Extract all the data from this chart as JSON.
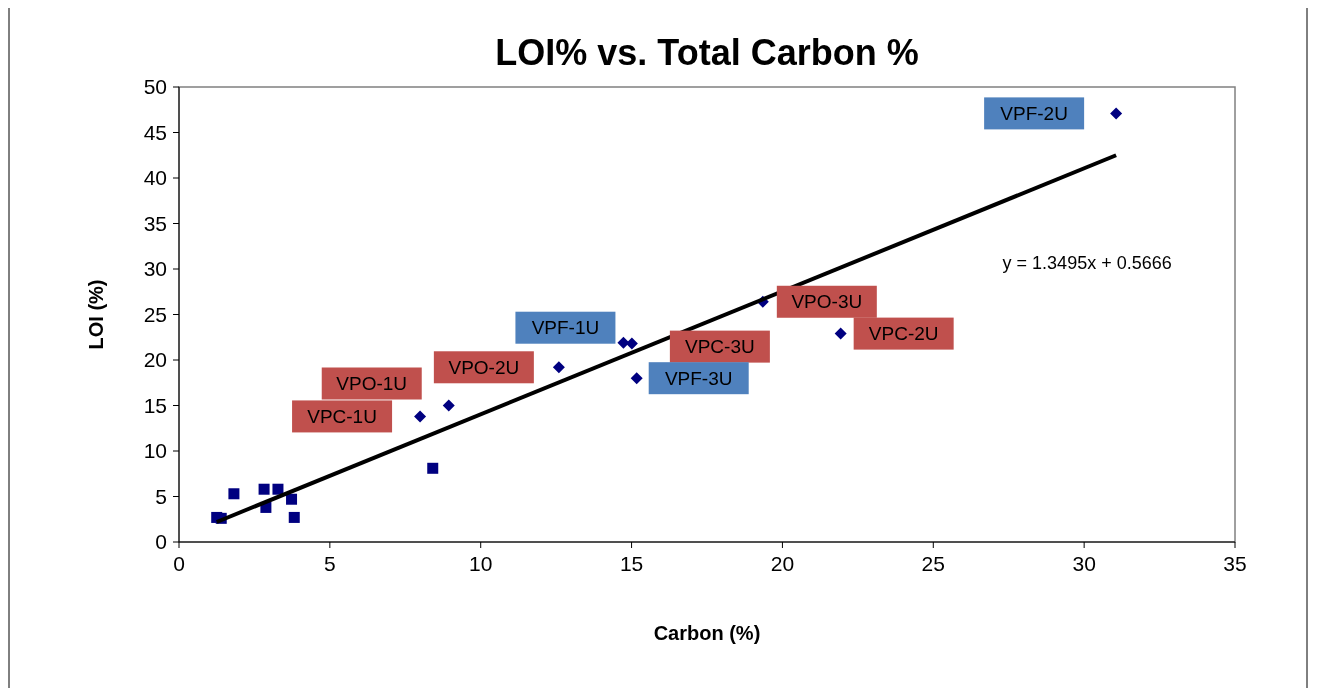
{
  "chart_data": {
    "type": "scatter",
    "title": "LOI% vs. Total Carbon %",
    "xlabel": "Carbon (%)",
    "ylabel": "LOI (%)",
    "xlim": [
      0,
      35
    ],
    "xticks": [
      0,
      5,
      10,
      15,
      20,
      25,
      30,
      35
    ],
    "ylim": [
      0,
      50
    ],
    "yticks": [
      0,
      5,
      10,
      15,
      20,
      25,
      30,
      35,
      40,
      45,
      50
    ],
    "grid": false,
    "series": [
      {
        "marker": "square",
        "color": "#000080",
        "x": [
          1.25,
          1.4,
          1.82,
          2.82,
          3.28,
          2.88,
          3.73,
          3.82,
          8.41
        ],
        "values": [
          2.7,
          2.6,
          5.3,
          5.8,
          5.8,
          3.8,
          4.7,
          2.7,
          8.1
        ]
      },
      {
        "marker": "diamond",
        "color": "#000080",
        "x": [
          7.99,
          8.94,
          12.59,
          14.73,
          15.01,
          15.17,
          19.35,
          21.93,
          31.06
        ],
        "values": [
          13.8,
          15.0,
          19.2,
          21.9,
          21.8,
          18.0,
          26.4,
          22.9,
          47.1
        ]
      },
      {
        "type": "line",
        "marker": "none",
        "color": "#000000",
        "x": [
          1.25,
          31.06
        ],
        "values": [
          2.2,
          42.5
        ]
      }
    ],
    "annotations": [
      {
        "text": "VPC-1U",
        "x": 7.99,
        "y": 13.8
      },
      {
        "text": "VPO-1U",
        "x": 8.94,
        "y": 15.0
      },
      {
        "text": "VPO-2U",
        "x": 12.59,
        "y": 19.2
      },
      {
        "text": "VPF-1U",
        "x": 14.73,
        "y": 21.9
      },
      {
        "text": "VPC-3U",
        "x": 15.01,
        "y": 21.8
      },
      {
        "text": "VPF-3U",
        "x": 15.17,
        "y": 18.0
      },
      {
        "text": "VPO-3U",
        "x": 19.35,
        "y": 26.4
      },
      {
        "text": "VPC-2U",
        "x": 21.93,
        "y": 22.9
      },
      {
        "text": "VPF-2U",
        "x": 31.06,
        "y": 47.1
      },
      "y = 1.3495x + 0.5666"
    ]
  }
}
